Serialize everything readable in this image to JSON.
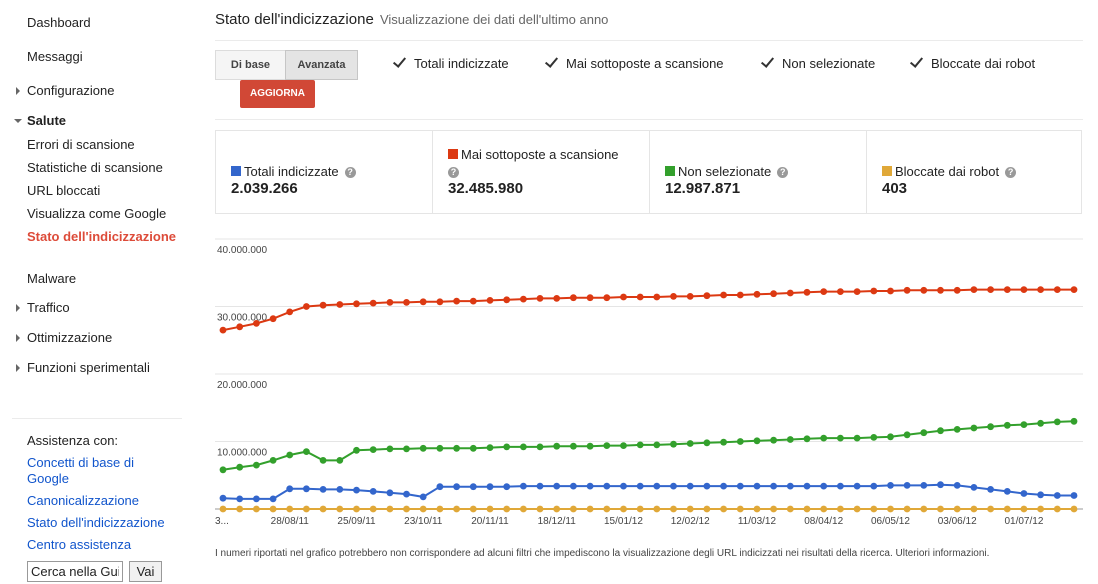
{
  "sidebar": {
    "items": [
      {
        "label": "Dashboard"
      },
      {
        "label": "Messaggi"
      },
      {
        "label": "Configurazione"
      },
      {
        "label": "Salute"
      },
      {
        "label": "Errori di scansione"
      },
      {
        "label": "Statistiche di scansione"
      },
      {
        "label": "URL bloccati"
      },
      {
        "label": "Visualizza come Google"
      },
      {
        "label": "Stato dell'indicizzazione"
      },
      {
        "label": "Malware"
      },
      {
        "label": "Traffico"
      },
      {
        "label": "Ottimizzazione"
      },
      {
        "label": "Funzioni sperimentali"
      }
    ],
    "help_title": "Assistenza con:",
    "help_links": [
      {
        "label": "Concetti di base di Google"
      },
      {
        "label": "Canonicalizzazione"
      },
      {
        "label": "Stato dell'indicizzazione"
      },
      {
        "label": "Centro assistenza"
      }
    ],
    "search_value": "Cerca nella Gui",
    "search_button": "Vai"
  },
  "header": {
    "title": "Stato dell'indicizzazione",
    "subtitle": "Visualizzazione dei dati dell'ultimo anno"
  },
  "view_toggle": {
    "basic": "Di base",
    "advanced": "Avanzata"
  },
  "checkboxes": [
    {
      "label": "Totali indicizzate",
      "checked": true
    },
    {
      "label": "Mai sottoposte a scansione",
      "checked": true
    },
    {
      "label": "Non selezionate",
      "checked": true
    },
    {
      "label": "Bloccate dai robot",
      "checked": true
    }
  ],
  "update_button": "AGGIORNA",
  "stats": [
    {
      "label": "Totali indicizzate",
      "value": "2.039.266",
      "color": "#3366cc"
    },
    {
      "label": "Mai sottoposte a scansione",
      "value": "32.485.980",
      "color": "#dc3912"
    },
    {
      "label": "Non selezionate",
      "value": "12.987.871",
      "color": "#33a02c"
    },
    {
      "label": "Bloccate dai robot",
      "value": "403",
      "color": "#e0a838"
    }
  ],
  "footnote": "I numeri riportati nel grafico potrebbero non corrispondere ad alcuni filtri che impediscono la visualizzazione degli URL indicizzati nei risultati della ricerca. Ulteriori informazioni.",
  "chart_data": {
    "type": "line",
    "ylim": [
      0,
      40000000
    ],
    "y_ticks": [
      "40.000.000",
      "30.000.000",
      "20.000.000",
      "10.000.000"
    ],
    "y_tick_values": [
      40000000,
      30000000,
      20000000,
      10000000
    ],
    "x_labels": [
      "3...",
      "28/08/11",
      "25/09/11",
      "23/10/11",
      "20/11/11",
      "18/12/11",
      "15/01/12",
      "12/02/12",
      "11/03/12",
      "08/04/12",
      "06/05/12",
      "03/06/12",
      "01/07/12"
    ],
    "x_label_index": [
      0,
      4,
      8,
      12,
      16,
      20,
      24,
      28,
      32,
      36,
      40,
      44,
      48
    ],
    "series": [
      {
        "name": "Mai sottoposte a scansione",
        "color": "#dc3912",
        "values": [
          26500000,
          27000000,
          27500000,
          28200000,
          29200000,
          30000000,
          30200000,
          30300000,
          30400000,
          30500000,
          30600000,
          30600000,
          30700000,
          30700000,
          30800000,
          30800000,
          30900000,
          31000000,
          31100000,
          31200000,
          31200000,
          31300000,
          31300000,
          31300000,
          31400000,
          31400000,
          31400000,
          31500000,
          31500000,
          31600000,
          31700000,
          31700000,
          31800000,
          31900000,
          32000000,
          32100000,
          32200000,
          32200000,
          32200000,
          32300000,
          32300000,
          32400000,
          32400000,
          32400000,
          32400000,
          32500000,
          32500000,
          32500000,
          32500000,
          32500000,
          32500000,
          32500000
        ]
      },
      {
        "name": "Non selezionate",
        "color": "#33a02c",
        "values": [
          5800000,
          6200000,
          6500000,
          7200000,
          8000000,
          8500000,
          7200000,
          7200000,
          8700000,
          8800000,
          8900000,
          8900000,
          9000000,
          9000000,
          9000000,
          9000000,
          9100000,
          9200000,
          9200000,
          9200000,
          9300000,
          9300000,
          9300000,
          9400000,
          9400000,
          9500000,
          9500000,
          9600000,
          9700000,
          9800000,
          9900000,
          10000000,
          10100000,
          10200000,
          10300000,
          10400000,
          10500000,
          10500000,
          10500000,
          10600000,
          10700000,
          11000000,
          11300000,
          11600000,
          11800000,
          12000000,
          12200000,
          12400000,
          12500000,
          12700000,
          12900000,
          13000000
        ]
      },
      {
        "name": "Totali indicizzate",
        "color": "#3366cc",
        "values": [
          1600000,
          1500000,
          1500000,
          1500000,
          3000000,
          3000000,
          2900000,
          2900000,
          2800000,
          2600000,
          2400000,
          2200000,
          1800000,
          3300000,
          3300000,
          3300000,
          3300000,
          3300000,
          3400000,
          3400000,
          3400000,
          3400000,
          3400000,
          3400000,
          3400000,
          3400000,
          3400000,
          3400000,
          3400000,
          3400000,
          3400000,
          3400000,
          3400000,
          3400000,
          3400000,
          3400000,
          3400000,
          3400000,
          3400000,
          3400000,
          3500000,
          3500000,
          3500000,
          3600000,
          3500000,
          3200000,
          2900000,
          2600000,
          2300000,
          2100000,
          2000000,
          2000000
        ]
      },
      {
        "name": "Bloccate dai robot",
        "color": "#e0a838",
        "values": [
          403,
          403,
          403,
          403,
          403,
          403,
          403,
          403,
          403,
          403,
          403,
          403,
          403,
          403,
          403,
          403,
          403,
          403,
          403,
          403,
          403,
          403,
          403,
          403,
          403,
          403,
          403,
          403,
          403,
          403,
          403,
          403,
          403,
          403,
          403,
          403,
          403,
          403,
          403,
          403,
          403,
          403,
          403,
          403,
          403,
          403,
          403,
          403,
          403,
          403,
          403,
          403
        ]
      }
    ]
  }
}
